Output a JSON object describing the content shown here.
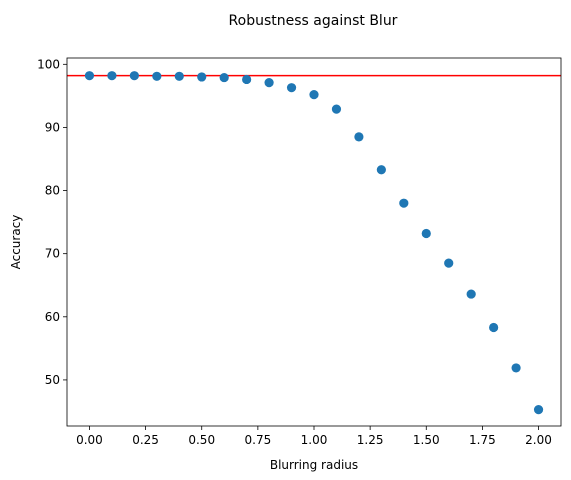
{
  "chart_data": {
    "type": "scatter",
    "title": "Robustness against Blur",
    "xlabel": "Blurring radius",
    "ylabel": "Accuracy",
    "xlim": [
      -0.1,
      2.1
    ],
    "ylim": [
      42.7,
      101.0
    ],
    "x_ticks": [
      0.0,
      0.25,
      0.5,
      0.75,
      1.0,
      1.25,
      1.5,
      1.75,
      2.0
    ],
    "x_tick_labels": [
      "0.00",
      "0.25",
      "0.50",
      "0.75",
      "1.00",
      "1.25",
      "1.50",
      "1.75",
      "2.00"
    ],
    "y_ticks": [
      50,
      60,
      70,
      80,
      90,
      100
    ],
    "y_tick_labels": [
      "50",
      "60",
      "70",
      "80",
      "90",
      "100"
    ],
    "grid": false,
    "legend": "none",
    "series": [
      {
        "color": "#1f77b4",
        "marker": "circle",
        "x": [
          0.0,
          0.1,
          0.2,
          0.3,
          0.4,
          0.5,
          0.6,
          0.7,
          0.8,
          0.9,
          1.0,
          1.1,
          1.2,
          1.3,
          1.4,
          1.5,
          1.6,
          1.7,
          1.8,
          1.9,
          2.0
        ],
        "y": [
          98.2,
          98.2,
          98.2,
          98.1,
          98.1,
          98.0,
          97.9,
          97.6,
          97.1,
          96.3,
          95.2,
          92.9,
          88.5,
          83.3,
          78.0,
          73.2,
          68.5,
          63.6,
          58.3,
          51.9,
          45.3
        ]
      }
    ],
    "reference_lines": [
      {
        "orientation": "horizontal",
        "y": 98.2,
        "color": "#ff0000"
      }
    ]
  }
}
